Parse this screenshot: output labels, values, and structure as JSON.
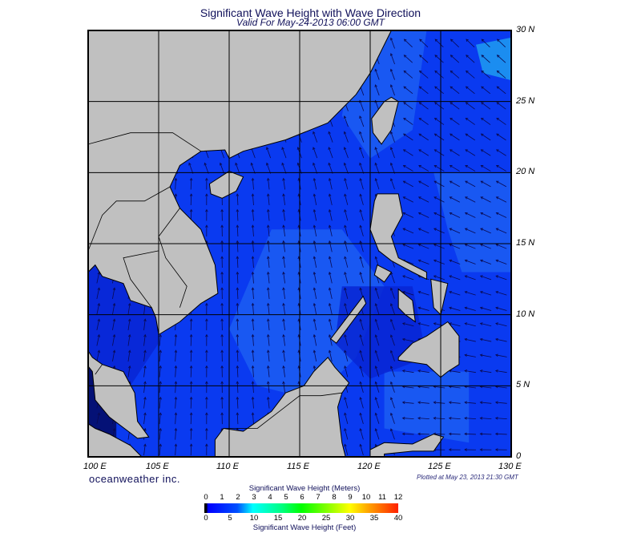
{
  "title": "Significant Wave Height with Wave Direction",
  "subtitle": "Valid For May-24-2013 06:00 GMT",
  "map": {
    "extent": {
      "lon": [
        100,
        130
      ],
      "lat": [
        0,
        30
      ]
    },
    "lon_labels": [
      "100 E",
      "105 E",
      "110 E",
      "115 E",
      "120 E",
      "125 E",
      "130 E"
    ],
    "lat_labels": [
      "30 N",
      "25 N",
      "20 N",
      "15 N",
      "10 N",
      "5 N",
      "0"
    ],
    "land_color": "#c0c0c0",
    "ocean_colors": {
      "base": "#0a3af0",
      "dark": "#0826d4",
      "light": "#1c5ef2",
      "brightest": "#1e9cf0"
    },
    "grid_color": "#000000"
  },
  "brand": "oceanweather inc.",
  "plotted": "Plotted at May 23, 2013 21:30 GMT",
  "colorbar": {
    "title_meters": "Significant Wave Height (Meters)",
    "title_feet": "Significant Wave Height (Feet)",
    "meters": [
      "0",
      "1",
      "2",
      "3",
      "4",
      "5",
      "6",
      "7",
      "8",
      "9",
      "10",
      "11",
      "12"
    ],
    "feet": [
      "0",
      "5",
      "10",
      "15",
      "20",
      "25",
      "30",
      "35",
      "40"
    ]
  }
}
